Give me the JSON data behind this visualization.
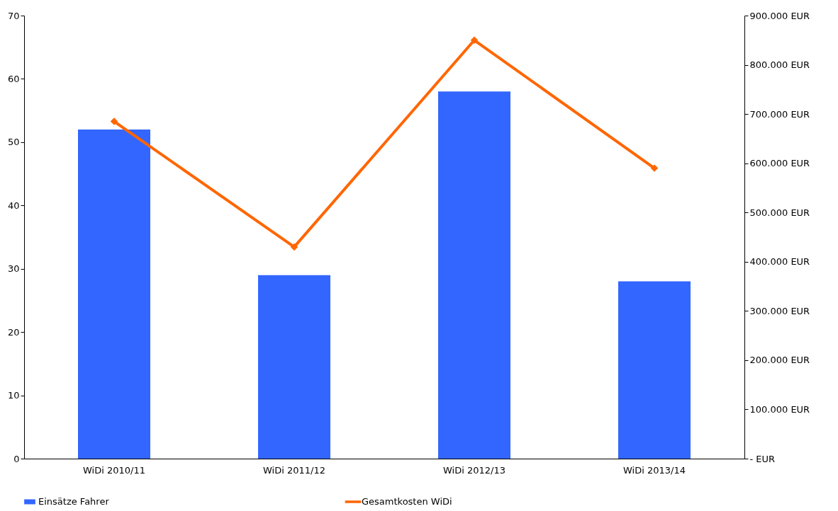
{
  "chart_data": {
    "type": "bar",
    "categories": [
      "WiDi 2010/11",
      "WiDi 2011/12",
      "WiDi 2012/13",
      "WiDi 2013/14"
    ],
    "series": [
      {
        "name": "Einsätze Fahrer",
        "color": "#3366ff",
        "values": [
          52,
          29,
          58,
          28
        ]
      },
      {
        "name": "Gesamtkosten WiDi",
        "type": "line",
        "axis": "y2",
        "color": "#ff6600",
        "values": [
          685000,
          430000,
          850000,
          590000
        ],
        "marker": "diamond",
        "line_style": "solid"
      }
    ],
    "ylim": [
      0,
      70
    ],
    "yticks": [
      0,
      10,
      20,
      30,
      40,
      50,
      60,
      70
    ],
    "y2lim": [
      0,
      900000
    ],
    "y2ticks": [
      {
        "value": 0,
        "label": "- EUR"
      },
      {
        "value": 100000,
        "label": "100.000 EUR"
      },
      {
        "value": 200000,
        "label": "200.000 EUR"
      },
      {
        "value": 300000,
        "label": "300.000 EUR"
      },
      {
        "value": 400000,
        "label": "400.000 EUR"
      },
      {
        "value": 500000,
        "label": "500.000 EUR"
      },
      {
        "value": 600000,
        "label": "600.000 EUR"
      },
      {
        "value": 700000,
        "label": "700.000 EUR"
      },
      {
        "value": 800000,
        "label": "800.000 EUR"
      },
      {
        "value": 900000,
        "label": "900.000 EUR"
      }
    ],
    "grid": false,
    "legend": "bottom"
  }
}
